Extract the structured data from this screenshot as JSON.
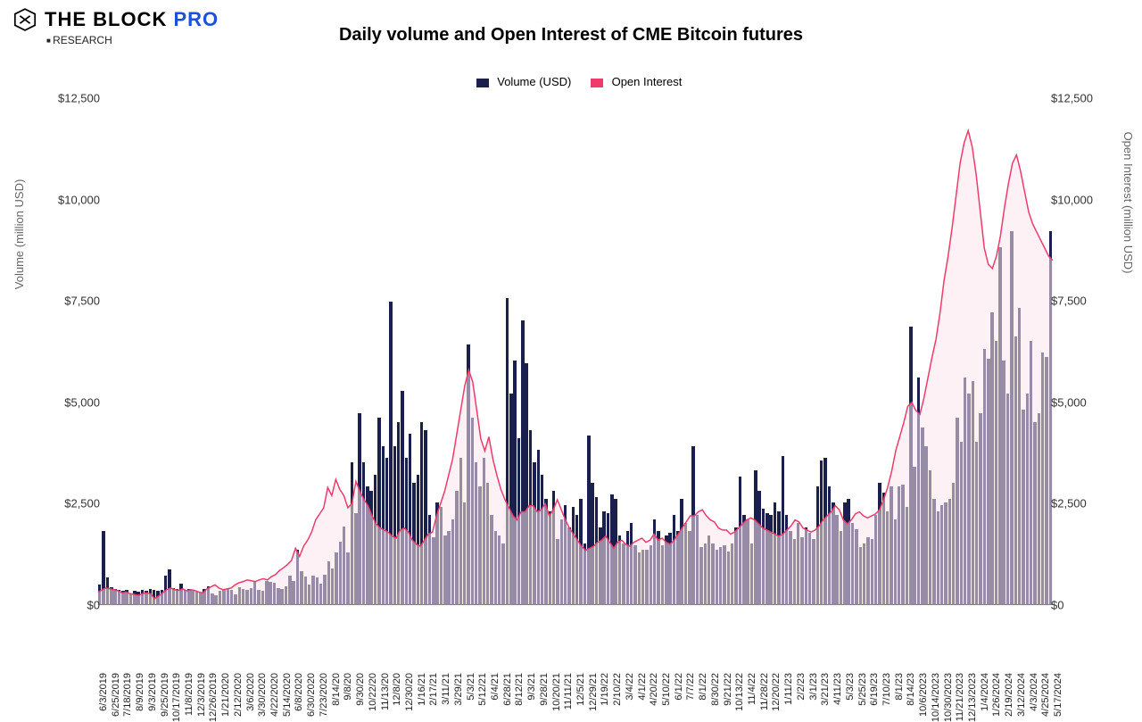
{
  "brand": {
    "name": "THE BLOCK",
    "suffix": "PRO",
    "sub": "RESEARCH",
    "color": "#1e4fd8"
  },
  "chart": {
    "type": "bar+line",
    "title": "Daily volume and Open Interest of CME Bitcoin futures",
    "legend": [
      {
        "label": "Volume (USD)",
        "color": "#1a1f4d",
        "shape": "rect"
      },
      {
        "label": "Open Interest",
        "color": "#ef3b6b",
        "shape": "rect"
      }
    ],
    "y_left": {
      "label": "Volume (million USD)",
      "min": 0,
      "max": 12500,
      "step": 2500,
      "tick_prefix": "$",
      "fontsize": 13
    },
    "y_right": {
      "label": "Open Interest (million USD)",
      "min": 0,
      "max": 12500,
      "step": 2500,
      "tick_prefix": "$",
      "fontsize": 13
    },
    "x": {
      "labels": [
        "6/3/2019",
        "6/25/2019",
        "7/18/2019",
        "8/9/2019",
        "9/3/2019",
        "9/25/2019",
        "10/17/2019",
        "11/8/2019",
        "12/3/2019",
        "12/26/2019",
        "1/21/2020",
        "2/12/2020",
        "3/6/2020",
        "3/30/2020",
        "4/22/2020",
        "5/14/2020",
        "6/8/2020",
        "6/30/2020",
        "7/23/2020",
        "8/14/20",
        "9/8/20",
        "9/30/20",
        "10/22/20",
        "11/13/20",
        "12/8/20",
        "12/30/20",
        "1/16/21",
        "2/17/21",
        "3/11/21",
        "3/29/21",
        "5/3/21",
        "5/12/21",
        "6/4/21",
        "6/28/21",
        "8/12/21",
        "9/3/21",
        "9/28/21",
        "10/20/21",
        "11/11/21",
        "12/5/21",
        "12/29/21",
        "1/19/22",
        "2/10/22",
        "3/4/22",
        "4/1/22",
        "4/20/22",
        "5/10/22",
        "6/1/22",
        "7/7/22",
        "8/1/22",
        "8/30/22",
        "9/21/22",
        "10/13/22",
        "11/4/22",
        "11/28/22",
        "12/20/22",
        "1/11/23",
        "2/2/23",
        "3/1/23",
        "3/21/23",
        "4/11/23",
        "5/3/23",
        "5/25/23",
        "6/19/23",
        "7/10/23",
        "8/1/23",
        "8/14/23",
        "10/6/2023",
        "10/14/2023",
        "10/30/2023",
        "11/21/2023",
        "12/13/2023",
        "1/4/2024",
        "1/26/2024",
        "2/19/2024",
        "3/12/2024",
        "4/3/2024",
        "4/25/2024",
        "5/17/2024"
      ],
      "fontsize": 11,
      "rotation": -90
    },
    "background_color": "#ffffff",
    "bar_color": "#1a1f4d",
    "line_color": "#ef3b6b",
    "line_fill": "#fde6ee",
    "line_width": 1.5,
    "volume": [
      480,
      1800,
      650,
      420,
      380,
      360,
      320,
      350,
      260,
      340,
      300,
      360,
      330,
      380,
      350,
      320,
      360,
      700,
      850,
      400,
      380,
      500,
      360,
      380,
      350,
      310,
      280,
      380,
      450,
      260,
      210,
      330,
      370,
      390,
      360,
      240,
      420,
      380,
      360,
      400,
      560,
      360,
      340,
      580,
      550,
      530,
      400,
      380,
      450,
      700,
      580,
      1350,
      820,
      680,
      480,
      700,
      650,
      500,
      720,
      1050,
      870,
      1280,
      1550,
      1920,
      1280,
      3500,
      2250,
      4700,
      3500,
      2900,
      2800,
      3200,
      4600,
      3900,
      3600,
      7450,
      3900,
      4500,
      5250,
      3600,
      4200,
      3000,
      3200,
      4500,
      4300,
      2200,
      1650,
      2500,
      2400,
      1700,
      1800,
      2100,
      2800,
      3600,
      2500,
      6400,
      4600,
      3500,
      2900,
      3600,
      3000,
      2200,
      1800,
      1700,
      1500,
      7550,
      5200,
      6000,
      4100,
      7000,
      5950,
      4300,
      3500,
      3800,
      3200,
      2600,
      2300,
      2800,
      1600,
      2100,
      2450,
      1900,
      2400,
      2200,
      2600,
      1500,
      4150,
      3000,
      2650,
      1900,
      2300,
      2250,
      2700,
      2600,
      1700,
      1500,
      1800,
      2000,
      1450,
      1280,
      1350,
      1350,
      1450,
      2100,
      1800,
      1450,
      1700,
      1750,
      2200,
      1800,
      2600,
      2000,
      1800,
      3900,
      2200,
      1400,
      1500,
      1700,
      1500,
      1350,
      1400,
      1450,
      1300,
      1500,
      1900,
      3150,
      2200,
      2100,
      1500,
      3300,
      2800,
      2350,
      2250,
      2200,
      2500,
      2300,
      3650,
      2200,
      1800,
      1600,
      2000,
      1650,
      1900,
      1750,
      1600,
      2900,
      3550,
      3600,
      2900,
      2500,
      2200,
      1800,
      2500,
      2600,
      2000,
      1850,
      1400,
      1500,
      1650,
      1600,
      2200,
      3000,
      2750,
      2300,
      2900,
      2100,
      2900,
      2950,
      2400,
      6850,
      3400,
      5600,
      4350,
      3900,
      3300,
      2600,
      2300,
      2450,
      2500,
      2600,
      3000,
      4600,
      4000,
      5600,
      5200,
      5500,
      4000,
      4700,
      6300,
      6050,
      7200,
      6500,
      8800,
      6000,
      5200,
      9200,
      6600,
      7300,
      4800,
      5200,
      6500,
      4500,
      4700,
      6200,
      6100,
      9200
    ],
    "open_interest": [
      320,
      380,
      420,
      400,
      380,
      350,
      300,
      320,
      280,
      260,
      240,
      280,
      300,
      280,
      160,
      220,
      300,
      380,
      420,
      380,
      360,
      400,
      350,
      380,
      360,
      320,
      300,
      400,
      450,
      500,
      420,
      380,
      400,
      420,
      500,
      550,
      580,
      620,
      600,
      580,
      620,
      650,
      620,
      700,
      750,
      850,
      920,
      1000,
      1100,
      1400,
      1200,
      1450,
      1600,
      1800,
      2100,
      2250,
      2400,
      2900,
      2700,
      3100,
      2850,
      2700,
      2400,
      2500,
      3050,
      2800,
      2600,
      2450,
      2200,
      2000,
      1900,
      1850,
      1800,
      1700,
      1650,
      1850,
      1900,
      1800,
      1600,
      1500,
      1450,
      1600,
      1750,
      1800,
      2200,
      2500,
      2800,
      3200,
      3600,
      4200,
      4800,
      5400,
      5800,
      5500,
      4800,
      4100,
      3800,
      4150,
      3600,
      3200,
      2850,
      2600,
      2400,
      2200,
      2100,
      2300,
      2300,
      2450,
      2450,
      2300,
      2350,
      2500,
      2200,
      2350,
      2600,
      2350,
      2100,
      1900,
      1750,
      1600,
      1450,
      1350,
      1400,
      1450,
      1550,
      1600,
      1700,
      1550,
      1400,
      1550,
      1600,
      1500,
      1450,
      1550,
      1600,
      1650,
      1550,
      1600,
      1750,
      1600,
      1650,
      1550,
      1500,
      1600,
      1750,
      1900,
      2050,
      2200,
      2200,
      2300,
      2350,
      2200,
      2100,
      2050,
      1900,
      1850,
      1850,
      1750,
      1800,
      1900,
      2000,
      2100,
      2150,
      2100,
      2000,
      1900,
      1850,
      1800,
      1750,
      1700,
      1750,
      1850,
      1950,
      2100,
      2050,
      1900,
      1850,
      1800,
      1850,
      1950,
      2100,
      2200,
      2300,
      2450,
      2350,
      2100,
      2000,
      2100,
      2250,
      2300,
      2200,
      2150,
      2200,
      2250,
      2350,
      2600,
      2900,
      3300,
      3800,
      4150,
      4500,
      4900,
      5000,
      4800,
      4700,
      5100,
      5600,
      6100,
      6550,
      7200,
      8000,
      8600,
      9300,
      10100,
      10900,
      11400,
      11700,
      11300,
      10600,
      9700,
      8800,
      8400,
      8300,
      8600,
      9100,
      9800,
      10400,
      10900,
      11100,
      10700,
      10200,
      9700,
      9400,
      9200,
      9000,
      8800,
      8600,
      8500
    ]
  }
}
